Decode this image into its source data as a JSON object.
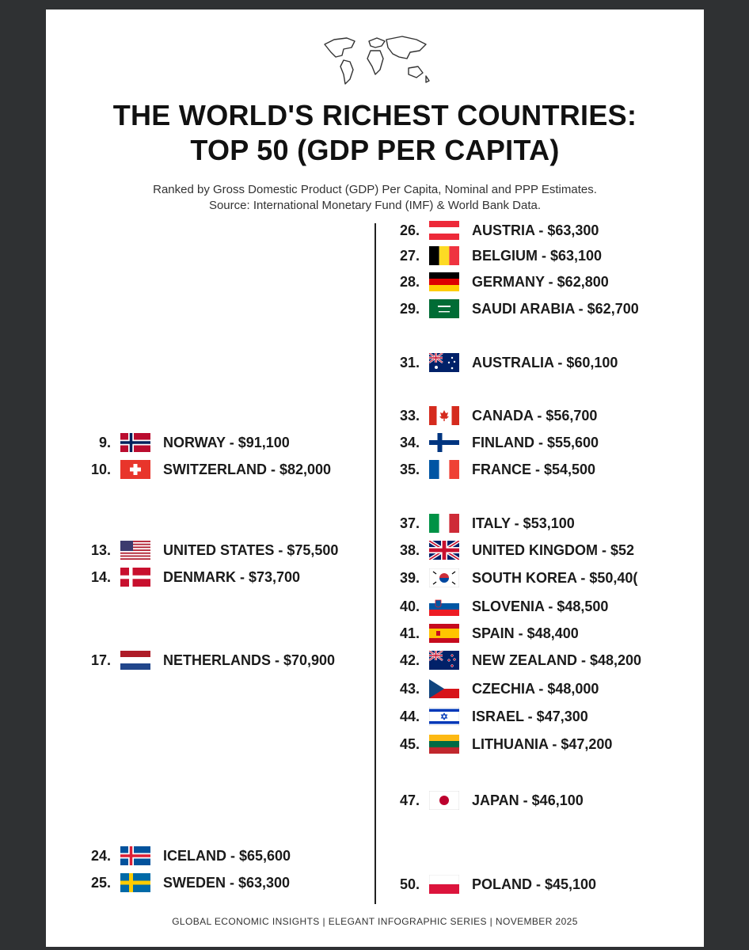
{
  "header": {
    "title_line1": "THE WORLD'S RICHEST COUNTRIES:",
    "title_line2": "TOP 50 (GDP PER CAPITA)",
    "subtitle_line1": "Ranked by Gross Domestic Product (GDP) Per Capita, Nominal and PPP Estimates.",
    "subtitle_line2": "Source: International Monetary Fund (IMF) & World Bank Data."
  },
  "left_column": [
    {
      "rank": "9.",
      "label": "NORWAY - $91,100",
      "flag": "norway-flag-icon"
    },
    {
      "rank": "10.",
      "label": "SWITZERLAND - $82,000",
      "flag": "switzerland-flag-icon"
    },
    {
      "rank": "13.",
      "label": "UNITED STATES - $75,500",
      "flag": "united-states-flag-icon"
    },
    {
      "rank": "14.",
      "label": "DENMARK - $73,700",
      "flag": "denmark-flag-icon"
    },
    {
      "rank": "17.",
      "label": "NETHERLANDS - $70,900",
      "flag": "netherlands-flag-icon"
    },
    {
      "rank": "24.",
      "label": "ICELAND - $65,600",
      "flag": "iceland-flag-icon"
    },
    {
      "rank": "25.",
      "label": "SWEDEN - $63,300",
      "flag": "sweden-flag-icon"
    }
  ],
  "right_column": [
    {
      "rank": "26.",
      "label": "AUSTRIA - $63,300",
      "flag": "austria-flag-icon"
    },
    {
      "rank": "27.",
      "label": "BELGIUM - $63,100",
      "flag": "belgium-flag-icon"
    },
    {
      "rank": "28.",
      "label": "GERMANY - $62,800",
      "flag": "germany-flag-icon"
    },
    {
      "rank": "29.",
      "label": "SAUDI ARABIA - $62,700",
      "flag": "saudi-arabia-flag-icon"
    },
    {
      "rank": "31.",
      "label": "AUSTRALIA - $60,100",
      "flag": "australia-flag-icon"
    },
    {
      "rank": "33.",
      "label": "CANADA - $56,700",
      "flag": "canada-flag-icon"
    },
    {
      "rank": "34.",
      "label": "FINLAND - $55,600",
      "flag": "finland-flag-icon"
    },
    {
      "rank": "35.",
      "label": "FRANCE - $54,500",
      "flag": "france-flag-icon"
    },
    {
      "rank": "37.",
      "label": "ITALY - $53,100",
      "flag": "italy-flag-icon"
    },
    {
      "rank": "38.",
      "label": "UNITED KINGDOM - $52",
      "flag": "united-kingdom-flag-icon"
    },
    {
      "rank": "39.",
      "label": "SOUTH KOREA - $50,40(",
      "flag": "south-korea-flag-icon"
    },
    {
      "rank": "40.",
      "label": "SLOVENIA - $48,500",
      "flag": "slovenia-flag-icon"
    },
    {
      "rank": "41.",
      "label": "SPAIN - $48,400",
      "flag": "spain-flag-icon"
    },
    {
      "rank": "42.",
      "label": "NEW ZEALAND - $48,200",
      "flag": "new-zealand-flag-icon"
    },
    {
      "rank": "43.",
      "label": "CZECHIA - $48,000",
      "flag": "czechia-flag-icon"
    },
    {
      "rank": "44.",
      "label": "ISRAEL - $47,300",
      "flag": "israel-flag-icon"
    },
    {
      "rank": "45.",
      "label": "LITHUANIA - $47,200",
      "flag": "lithuania-flag-icon"
    },
    {
      "rank": "47.",
      "label": "JAPAN - $46,100",
      "flag": "japan-flag-icon"
    },
    {
      "rank": "50.",
      "label": "POLAND - $45,100",
      "flag": "poland-flag-icon"
    }
  ],
  "footer": {
    "text": "GLOBAL ECONOMIC INSIGHTS | ELEGANT INFOGRAPHIC SERIES | NOVEMBER 2025"
  },
  "icons": {
    "header_icon": "world-map-icon"
  }
}
